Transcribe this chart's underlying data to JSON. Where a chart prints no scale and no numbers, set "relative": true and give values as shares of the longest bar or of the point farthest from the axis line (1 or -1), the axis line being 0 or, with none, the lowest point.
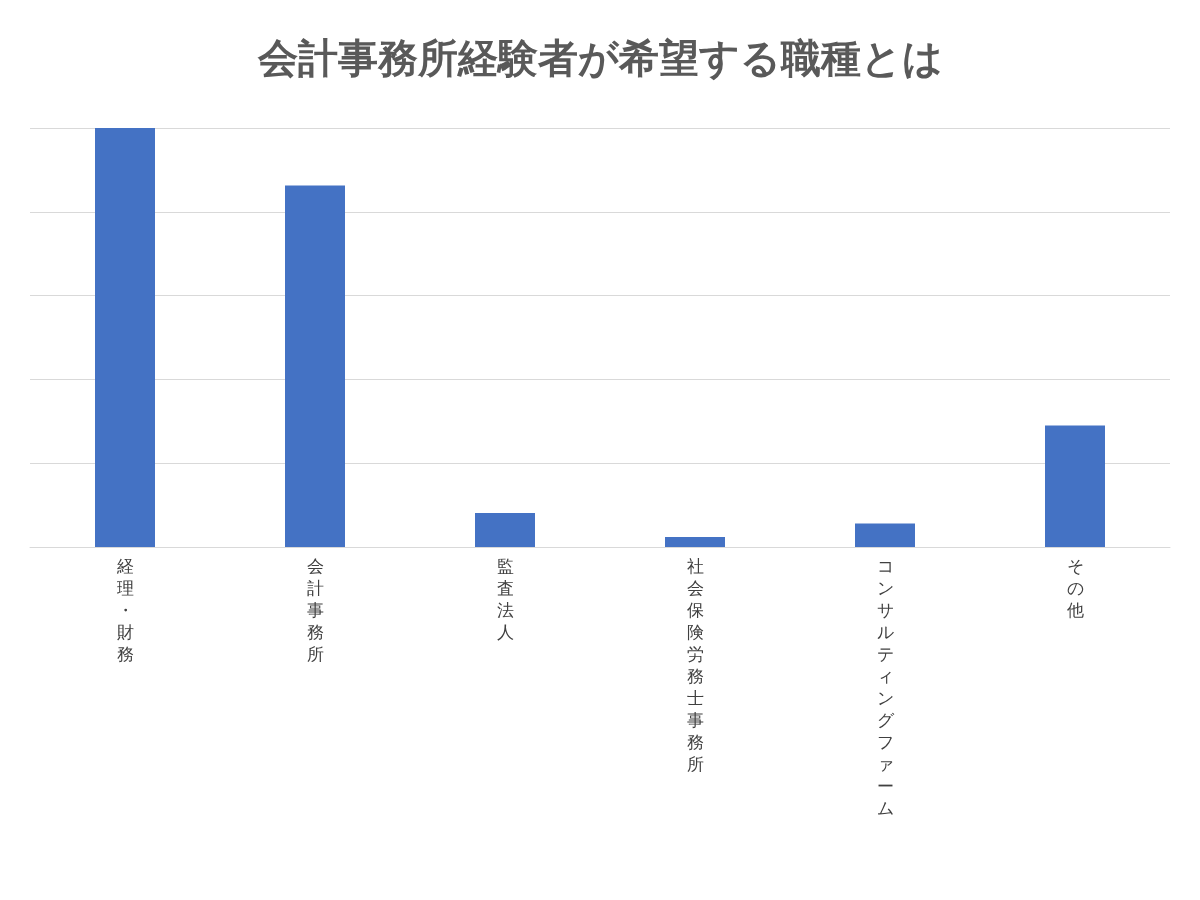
{
  "chart_data": {
    "type": "bar",
    "title": "会計事務所経験者が希望する職種とは",
    "categories": [
      "経理・財務",
      "会計事務所",
      "監査法人",
      "社会保険労務士事務所",
      "コンサルティングファーム",
      "その他"
    ],
    "values": [
      1,
      0.863,
      0.081,
      0.024,
      0.056,
      0.29
    ],
    "color": "#4472c4",
    "relative": true,
    "grid": "y"
  }
}
